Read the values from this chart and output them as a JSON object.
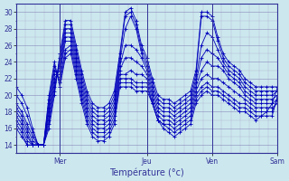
{
  "xlabel": "Température (°c)",
  "background_color": "#cce8ee",
  "line_color": "#0000bb",
  "grid_color_major": "#8888bb",
  "grid_color_minor": "#aaaacc",
  "yticks": [
    14,
    16,
    18,
    20,
    22,
    24,
    26,
    28,
    30
  ],
  "ylim": [
    13.0,
    31.0
  ],
  "xlim": [
    0,
    84
  ],
  "day_positions": [
    14,
    42,
    63,
    84
  ],
  "day_labels": [
    "Mer",
    "Jeu",
    "Ven",
    "Sam"
  ],
  "series": [
    [
      21.0,
      20.0,
      18.5,
      16.0,
      14.0,
      14.0,
      16.0,
      20.0,
      25.0,
      29.0,
      29.0,
      26.0,
      23.0,
      20.5,
      19.0,
      18.5,
      18.5,
      19.0,
      20.5,
      25.0,
      30.0,
      30.5,
      29.0,
      26.0,
      24.5,
      22.0,
      20.0,
      19.5,
      19.5,
      19.0,
      19.5,
      20.0,
      20.5,
      23.0,
      30.0,
      30.0,
      29.5,
      27.0,
      25.0,
      24.0,
      23.5,
      23.0,
      22.0,
      21.5,
      21.0,
      21.0,
      21.0,
      21.0,
      21.0
    ],
    [
      20.0,
      19.0,
      17.5,
      15.5,
      14.0,
      14.0,
      16.5,
      20.5,
      24.5,
      28.5,
      28.5,
      25.5,
      22.5,
      20.0,
      18.5,
      18.0,
      18.0,
      18.5,
      20.0,
      24.5,
      29.5,
      30.0,
      28.5,
      25.5,
      24.0,
      21.5,
      19.5,
      19.0,
      19.0,
      18.5,
      19.0,
      19.5,
      20.0,
      22.5,
      29.5,
      29.5,
      29.0,
      26.5,
      24.5,
      23.5,
      23.0,
      22.5,
      21.5,
      21.0,
      20.5,
      20.5,
      20.5,
      20.5,
      20.5
    ],
    [
      19.0,
      18.0,
      16.5,
      15.0,
      14.0,
      14.0,
      17.0,
      21.0,
      24.0,
      28.0,
      28.0,
      25.0,
      22.0,
      19.5,
      18.0,
      17.5,
      17.5,
      18.0,
      19.5,
      24.0,
      28.0,
      29.5,
      28.0,
      25.0,
      23.5,
      21.0,
      19.0,
      18.5,
      18.5,
      18.0,
      18.5,
      19.0,
      19.5,
      22.0,
      26.0,
      27.5,
      27.0,
      25.5,
      24.0,
      23.0,
      22.5,
      22.0,
      21.0,
      20.5,
      20.0,
      20.0,
      20.0,
      20.0,
      20.5
    ],
    [
      18.5,
      17.5,
      16.0,
      14.5,
      14.0,
      14.0,
      17.5,
      21.5,
      23.5,
      27.5,
      27.5,
      24.5,
      21.5,
      19.0,
      17.5,
      17.0,
      17.0,
      17.5,
      19.0,
      23.5,
      26.0,
      26.0,
      25.5,
      24.5,
      23.0,
      20.5,
      18.5,
      18.0,
      18.0,
      17.5,
      18.0,
      18.5,
      19.0,
      21.5,
      24.5,
      25.5,
      25.0,
      24.5,
      23.5,
      22.5,
      22.0,
      21.5,
      20.5,
      20.0,
      19.5,
      19.5,
      19.5,
      19.5,
      20.0
    ],
    [
      18.0,
      17.0,
      15.5,
      14.0,
      14.0,
      14.0,
      18.0,
      22.0,
      23.0,
      27.0,
      27.0,
      24.0,
      21.0,
      18.5,
      17.0,
      16.5,
      16.5,
      17.0,
      18.5,
      23.0,
      24.5,
      24.5,
      24.0,
      23.5,
      22.5,
      20.0,
      18.0,
      17.5,
      17.5,
      17.0,
      17.5,
      18.0,
      18.5,
      21.0,
      23.0,
      24.0,
      23.5,
      23.5,
      23.0,
      22.0,
      21.5,
      21.0,
      20.0,
      19.5,
      19.0,
      19.0,
      19.0,
      19.0,
      19.5
    ],
    [
      17.5,
      16.5,
      15.0,
      14.0,
      14.0,
      14.0,
      18.5,
      22.5,
      22.5,
      26.5,
      26.5,
      23.5,
      20.5,
      18.0,
      16.5,
      16.0,
      16.0,
      16.5,
      18.0,
      22.5,
      22.5,
      23.0,
      22.5,
      22.5,
      22.0,
      19.5,
      17.5,
      17.0,
      17.0,
      16.5,
      17.0,
      17.5,
      18.0,
      20.5,
      22.0,
      22.5,
      22.0,
      22.0,
      21.5,
      21.0,
      20.5,
      20.0,
      19.5,
      19.0,
      18.5,
      18.5,
      18.5,
      18.5,
      19.0
    ],
    [
      17.0,
      16.0,
      14.5,
      14.0,
      14.0,
      14.0,
      19.0,
      23.0,
      22.0,
      25.5,
      26.0,
      23.0,
      20.0,
      17.5,
      16.0,
      15.5,
      15.5,
      16.0,
      17.5,
      22.0,
      22.0,
      22.0,
      21.5,
      21.5,
      21.5,
      19.0,
      17.0,
      16.5,
      16.5,
      16.0,
      16.5,
      17.0,
      17.5,
      20.0,
      21.0,
      21.5,
      21.0,
      21.0,
      20.5,
      20.0,
      19.5,
      19.0,
      19.0,
      18.5,
      18.0,
      18.0,
      18.0,
      18.0,
      19.5
    ],
    [
      16.5,
      15.5,
      14.0,
      14.0,
      14.0,
      14.0,
      19.5,
      23.5,
      21.5,
      25.0,
      25.5,
      22.5,
      19.5,
      17.0,
      15.5,
      15.0,
      15.0,
      15.5,
      17.0,
      21.5,
      21.5,
      21.5,
      21.0,
      21.0,
      21.0,
      19.0,
      17.0,
      16.5,
      16.0,
      15.5,
      16.0,
      16.5,
      17.0,
      19.5,
      20.5,
      21.0,
      20.5,
      20.5,
      20.0,
      19.5,
      19.0,
      18.5,
      18.5,
      18.0,
      17.5,
      17.5,
      17.5,
      17.5,
      20.0
    ],
    [
      16.0,
      15.0,
      14.0,
      14.0,
      14.0,
      14.0,
      20.0,
      24.0,
      21.0,
      24.5,
      25.0,
      22.0,
      19.0,
      16.5,
      15.0,
      14.5,
      14.5,
      15.0,
      16.5,
      21.0,
      21.0,
      21.0,
      20.5,
      20.5,
      20.5,
      19.0,
      17.0,
      16.0,
      15.5,
      15.0,
      15.5,
      16.0,
      16.5,
      19.0,
      20.0,
      20.5,
      20.0,
      20.0,
      19.5,
      19.0,
      18.5,
      18.0,
      18.0,
      17.5,
      17.0,
      17.5,
      18.0,
      19.0,
      21.0
    ]
  ]
}
